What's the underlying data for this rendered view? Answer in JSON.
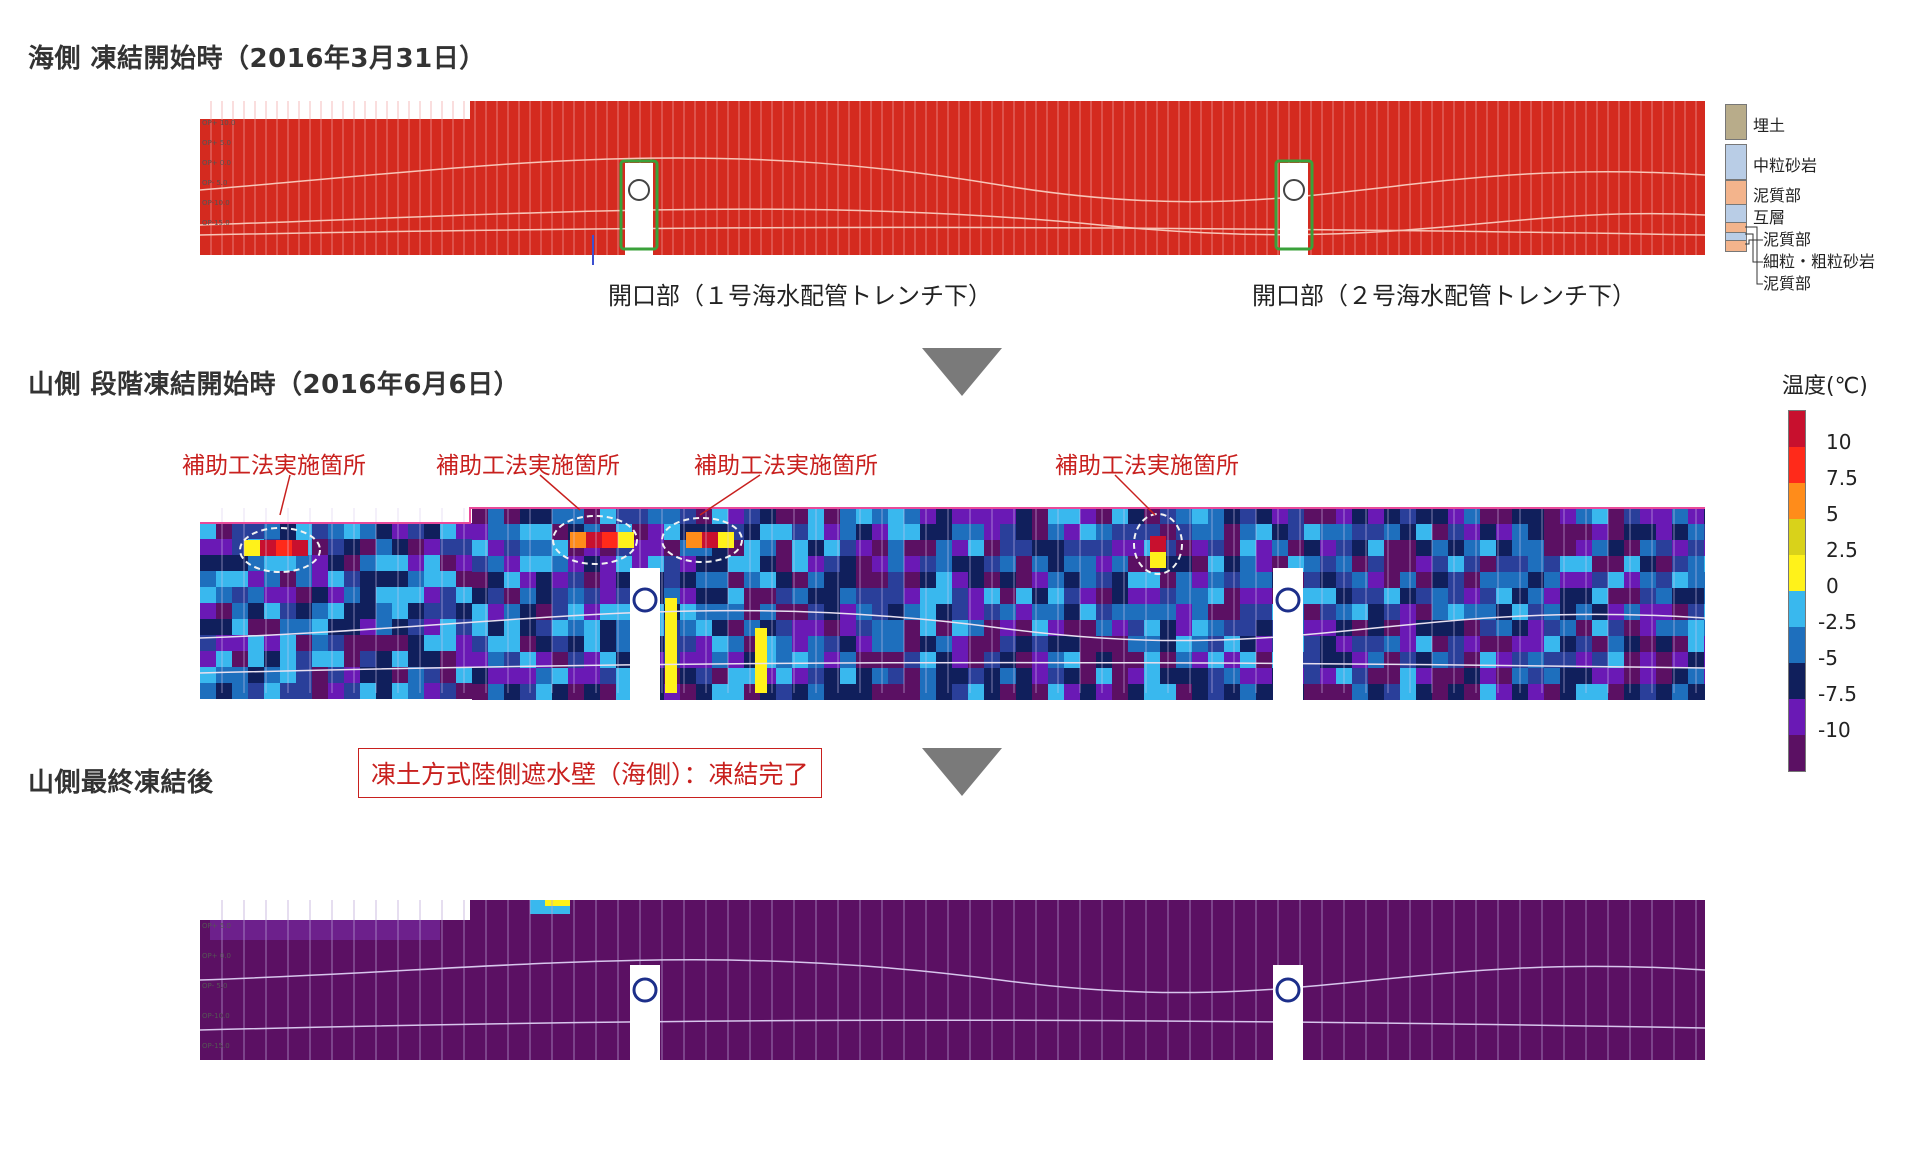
{
  "section_sea_start": {
    "title": "海側 凍結開始時（2016年3月31日）"
  },
  "section_mountain_stage": {
    "title": "山側 段階凍結開始時（2016年6月6日）"
  },
  "section_mountain_final": {
    "title": "山側最終凍結後"
  },
  "opening_labels": [
    "開口部（１号海水配管トレンチ下）",
    "開口部（２号海水配管トレンチ下）"
  ],
  "callouts": [
    "補助工法実施箇所",
    "補助工法実施箇所",
    "補助工法実施箇所",
    "補助工法実施箇所"
  ],
  "status_box": "凍土方式陸側遮水壁（海側）：凍結完了",
  "soil_legend": {
    "items": [
      {
        "label": "埋土",
        "color": "#b8ac8a"
      },
      {
        "label": "中粒砂岩",
        "color": "#b9cde6"
      },
      {
        "label": "泥質部",
        "color": "#f3b48c"
      },
      {
        "label": "互層",
        "color": "#b9cde6"
      },
      {
        "label": "泥質部",
        "color": "#f3b48c"
      },
      {
        "label": "細粒・粗粒砂岩",
        "color": "#b9cde6"
      },
      {
        "label": "泥質部",
        "color": "#f3b48c"
      }
    ]
  },
  "temperature_scale": {
    "title": "温度(℃)",
    "ticks": [
      "10",
      "7.5",
      "5",
      "2.5",
      "0",
      "-2.5",
      "-5",
      "-7.5",
      "-10"
    ],
    "colors": [
      "#c8102e",
      "#ff2a1a",
      "#ff8c1a",
      "#d9d21a",
      "#fff21a",
      "#39b8ee",
      "#1e6fbd",
      "#101f5c",
      "#6a19b5",
      "#5b1063"
    ]
  }
}
